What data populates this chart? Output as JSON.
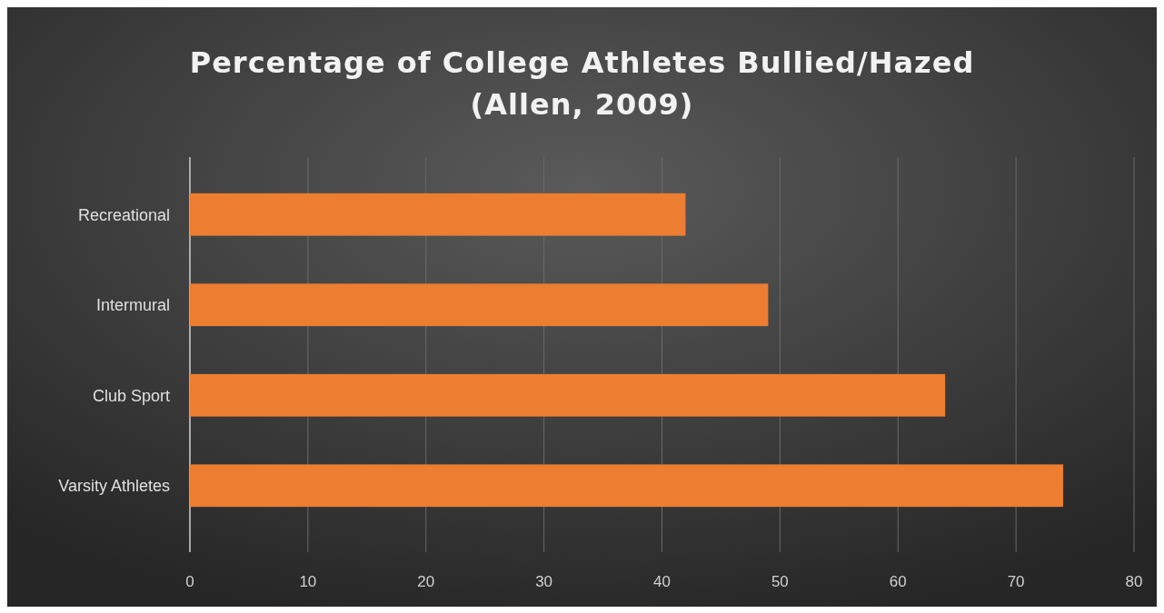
{
  "chart_data": {
    "type": "bar",
    "orientation": "horizontal",
    "title": "Percentage of College Athletes Bullied/Hazed\n(Allen, 2009)",
    "categories": [
      "Recreational",
      "Intermural",
      "Club Sport",
      "Varsity Athletes"
    ],
    "values": [
      42,
      49,
      64,
      74
    ],
    "color": "#ed7d31",
    "xlim": [
      0,
      80
    ],
    "xticks": [
      0,
      10,
      20,
      30,
      40,
      50,
      60,
      70,
      80
    ],
    "grid": "x"
  }
}
